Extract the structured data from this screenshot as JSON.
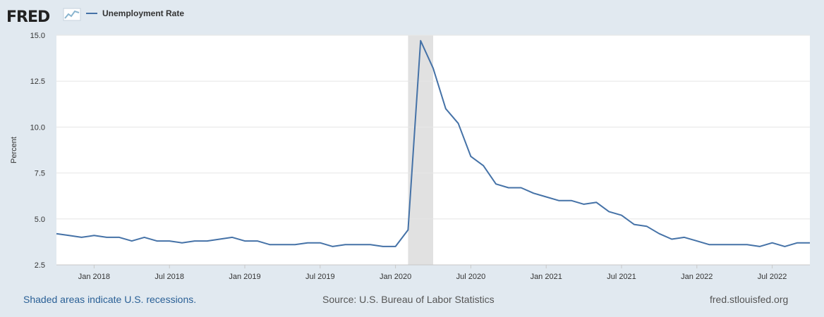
{
  "brand": {
    "name": "FRED"
  },
  "footer": {
    "note": "Shaded areas indicate U.S. recessions.",
    "source": "Source: U.S. Bureau of Labor Statistics",
    "site": "fred.stlouisfed.org"
  },
  "colors": {
    "line": "#4572a7",
    "recession": "#e1e1e1",
    "background": "#e1e9f0"
  },
  "chart_data": {
    "type": "line",
    "title": "",
    "xlabel": "",
    "ylabel": "Percent",
    "ylim": [
      2.5,
      15.0
    ],
    "yticks": [
      "2.5",
      "5.0",
      "7.5",
      "10.0",
      "12.5",
      "15.0"
    ],
    "xlim": [
      "2017-10",
      "2022-10"
    ],
    "xticks": [
      {
        "date": "2018-01",
        "label": "Jan 2018"
      },
      {
        "date": "2018-07",
        "label": "Jul 2018"
      },
      {
        "date": "2019-01",
        "label": "Jan 2019"
      },
      {
        "date": "2019-07",
        "label": "Jul 2019"
      },
      {
        "date": "2020-01",
        "label": "Jan 2020"
      },
      {
        "date": "2020-07",
        "label": "Jul 2020"
      },
      {
        "date": "2021-01",
        "label": "Jan 2021"
      },
      {
        "date": "2021-07",
        "label": "Jul 2021"
      },
      {
        "date": "2022-01",
        "label": "Jan 2022"
      },
      {
        "date": "2022-07",
        "label": "Jul 2022"
      }
    ],
    "grid": true,
    "legend": "top-left",
    "recessions": [
      {
        "start": "2020-02",
        "end": "2020-04"
      }
    ],
    "series": [
      {
        "name": "Unemployment Rate",
        "x": [
          "2017-10",
          "2017-11",
          "2017-12",
          "2018-01",
          "2018-02",
          "2018-03",
          "2018-04",
          "2018-05",
          "2018-06",
          "2018-07",
          "2018-08",
          "2018-09",
          "2018-10",
          "2018-11",
          "2018-12",
          "2019-01",
          "2019-02",
          "2019-03",
          "2019-04",
          "2019-05",
          "2019-06",
          "2019-07",
          "2019-08",
          "2019-09",
          "2019-10",
          "2019-11",
          "2019-12",
          "2020-01",
          "2020-02",
          "2020-03",
          "2020-04",
          "2020-05",
          "2020-06",
          "2020-07",
          "2020-08",
          "2020-09",
          "2020-10",
          "2020-11",
          "2020-12",
          "2021-01",
          "2021-02",
          "2021-03",
          "2021-04",
          "2021-05",
          "2021-06",
          "2021-07",
          "2021-08",
          "2021-09",
          "2021-10",
          "2021-11",
          "2021-12",
          "2022-01",
          "2022-02",
          "2022-03",
          "2022-04",
          "2022-05",
          "2022-06",
          "2022-07",
          "2022-08",
          "2022-09",
          "2022-10"
        ],
        "values": [
          4.2,
          4.1,
          4.0,
          4.1,
          4.0,
          4.0,
          3.8,
          4.0,
          3.8,
          3.8,
          3.7,
          3.8,
          3.8,
          3.9,
          4.0,
          3.8,
          3.8,
          3.6,
          3.6,
          3.6,
          3.7,
          3.7,
          3.5,
          3.6,
          3.6,
          3.6,
          3.5,
          3.5,
          4.4,
          14.7,
          13.2,
          11.0,
          10.2,
          8.4,
          7.9,
          6.9,
          6.7,
          6.7,
          6.4,
          6.2,
          6.0,
          6.0,
          5.8,
          5.9,
          5.4,
          5.2,
          4.7,
          4.6,
          4.2,
          3.9,
          4.0,
          3.8,
          3.6,
          3.6,
          3.6,
          3.6,
          3.5,
          3.7,
          3.5,
          3.7,
          3.7
        ]
      }
    ]
  }
}
